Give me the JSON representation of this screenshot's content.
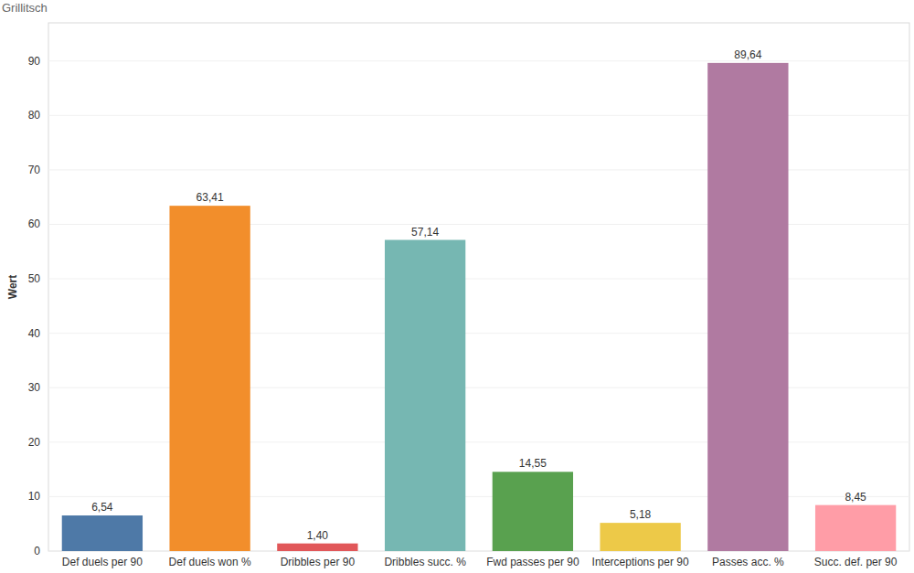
{
  "chart_data": {
    "type": "bar",
    "title": "Grillitsch",
    "y_label": "Wert",
    "categories": [
      "Def duels per 90",
      "Def duels won %",
      "Dribbles per 90",
      "Dribbles succ. %",
      "Fwd passes per 90",
      "Interceptions per 90",
      "Passes acc. %",
      "Succ. def. per 90"
    ],
    "values": [
      6.54,
      63.41,
      1.4,
      57.14,
      14.55,
      5.18,
      89.64,
      8.45
    ],
    "value_labels": [
      "6,54",
      "63,41",
      "1,40",
      "57,14",
      "14,55",
      "5,18",
      "89,64",
      "8,45"
    ],
    "colors": [
      "#4e79a7",
      "#f28e2b",
      "#e15759",
      "#76b7b2",
      "#59a14f",
      "#edc948",
      "#b07aa1",
      "#ff9da7"
    ],
    "ylim": [
      0,
      97
    ],
    "yticks": [
      0,
      10,
      20,
      30,
      40,
      50,
      60,
      70,
      80,
      90
    ],
    "grid": true,
    "data_labels": true
  }
}
